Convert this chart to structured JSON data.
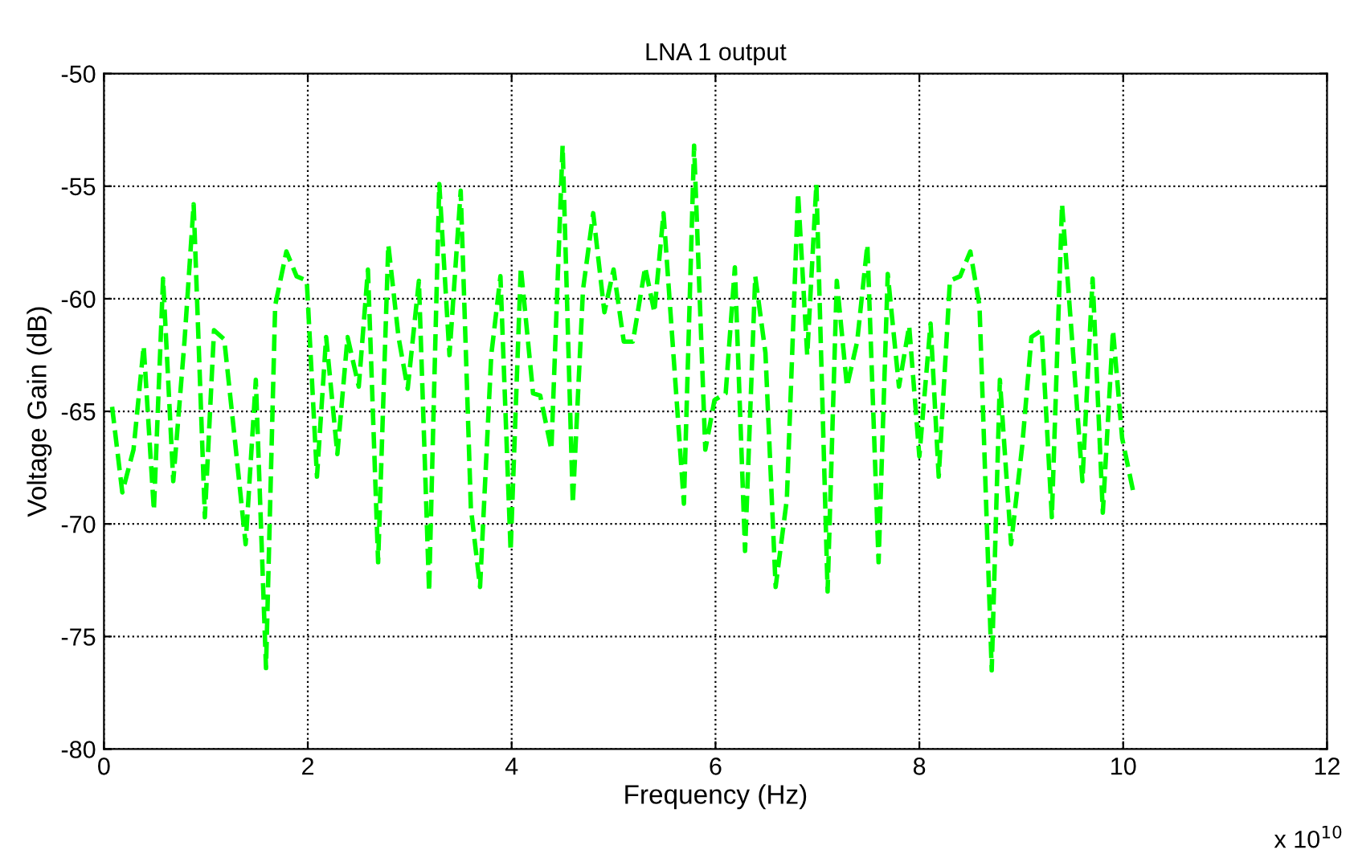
{
  "chart_data": {
    "type": "line",
    "title": "LNA 1 output",
    "xlabel": "Frequency (Hz)",
    "ylabel": "Voltage Gain (dB)",
    "annotations": [
      "x 10$^{10}$"
    ],
    "series": [
      {
        "color": "#00ff00",
        "line_style": "dashed",
        "marker": "none",
        "x": [
          0.08,
          0.18,
          0.29,
          0.39,
          0.49,
          0.58,
          0.68,
          0.79,
          0.88,
          0.99,
          1.08,
          1.18,
          1.29,
          1.39,
          1.49,
          1.59,
          1.68,
          1.79,
          1.89,
          1.99,
          2.09,
          2.18,
          2.29,
          2.39,
          2.5,
          2.59,
          2.69,
          2.79,
          2.89,
          2.98,
          3.09,
          3.19,
          3.29,
          3.39,
          3.5,
          3.6,
          3.69,
          3.8,
          3.89,
          3.99,
          4.09,
          4.21,
          4.28,
          4.39,
          4.5,
          4.6,
          4.7,
          4.8,
          4.91,
          5.0,
          5.1,
          5.19,
          5.31,
          5.4,
          5.49,
          5.69,
          5.79,
          5.9,
          5.99,
          6.1,
          6.19,
          6.29,
          6.39,
          6.49,
          6.59,
          6.7,
          6.81,
          6.9,
          6.99,
          7.1,
          7.19,
          7.29,
          7.39,
          7.49,
          7.6,
          7.69,
          7.8,
          7.9,
          8.0,
          8.11,
          8.19,
          8.3,
          8.4,
          8.5,
          8.59,
          8.71,
          8.79,
          8.9,
          9.01,
          9.1,
          9.2,
          9.3,
          9.4,
          9.5,
          9.6,
          9.7,
          9.8,
          9.9,
          9.99,
          10.1
        ],
        "values": [
          -64.8,
          -68.6,
          -66.7,
          -62.1,
          -69.4,
          -59.1,
          -68.1,
          -61.9,
          -55.8,
          -69.7,
          -61.4,
          -61.8,
          -66.5,
          -70.9,
          -63.6,
          -76.4,
          -60.3,
          -57.9,
          -59.0,
          -59.2,
          -67.9,
          -61.7,
          -66.9,
          -61.7,
          -63.9,
          -58.7,
          -71.7,
          -57.6,
          -61.7,
          -64.0,
          -59.2,
          -73.0,
          -54.9,
          -62.5,
          -55.2,
          -69.3,
          -72.8,
          -62.5,
          -59.0,
          -71.2,
          -58.6,
          -64.2,
          -64.3,
          -66.7,
          -53.2,
          -69.1,
          -59.6,
          -56.2,
          -60.6,
          -58.7,
          -61.9,
          -61.9,
          -58.6,
          -60.6,
          -56.2,
          -69.1,
          -53.2,
          -66.7,
          -64.5,
          -64.2,
          -58.6,
          -71.2,
          -59.0,
          -62.4,
          -72.8,
          -68.9,
          -55.3,
          -62.5,
          -54.9,
          -73.0,
          -59.2,
          -63.9,
          -61.9,
          -57.6,
          -71.7,
          -58.9,
          -63.9,
          -61.2,
          -67.0,
          -61.1,
          -67.9,
          -59.2,
          -59.0,
          -57.9,
          -60.3,
          -76.5,
          -63.6,
          -70.9,
          -66.5,
          -61.7,
          -61.4,
          -69.7,
          -55.8,
          -61.9,
          -68.1,
          -59.1,
          -69.5,
          -61.4,
          -66.2,
          -68.6
        ]
      }
    ],
    "xlim": [
      0,
      12
    ],
    "xticks": [
      0,
      2,
      4,
      6,
      8,
      10,
      12
    ],
    "ylim": [
      -80,
      -50
    ],
    "yticks": [
      -80,
      -75,
      -70,
      -65,
      -60,
      -55,
      -50
    ],
    "grid": true,
    "legend": false
  }
}
